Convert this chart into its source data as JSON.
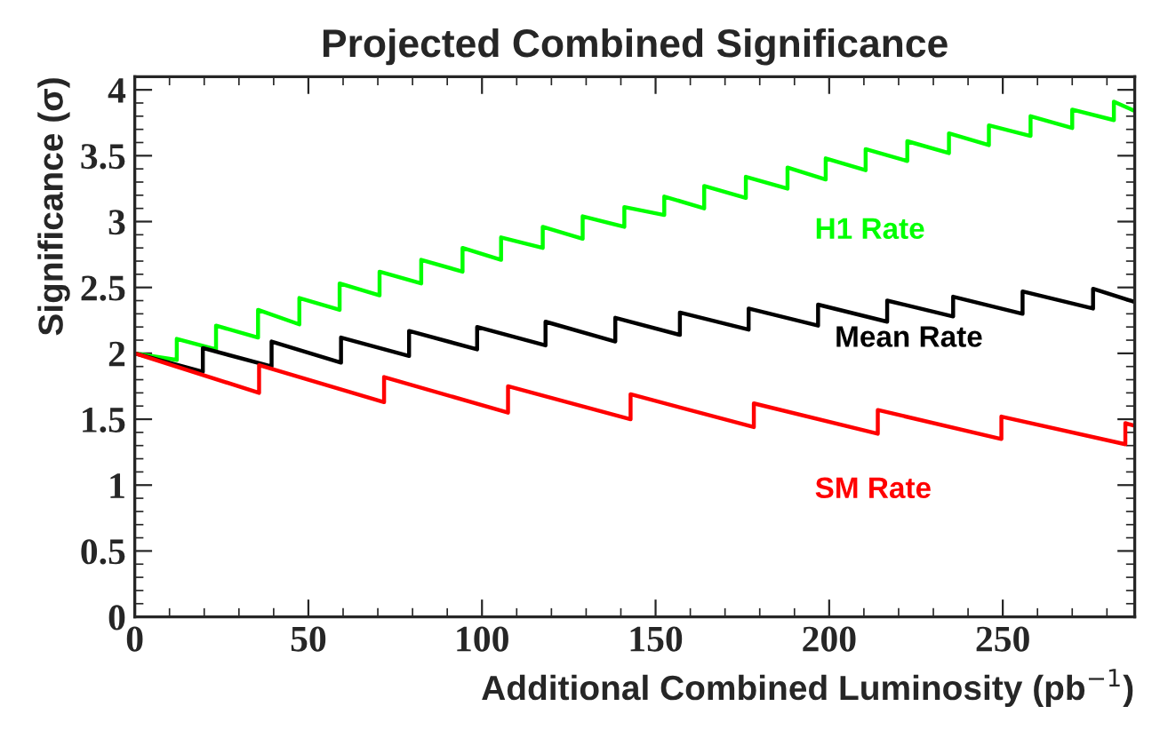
{
  "chart_data": {
    "type": "line",
    "title": "Projected Combined Significance",
    "xlabel": "Additional Combined Luminosity (pb$^{−1}$)",
    "ylabel": "Significance (σ)",
    "xlim": [
      0,
      288
    ],
    "ylim": [
      0,
      4.1
    ],
    "xticks": [
      0,
      50,
      100,
      150,
      200,
      250
    ],
    "yticks": [
      0,
      0.5,
      1,
      1.5,
      2,
      2.5,
      3,
      3.5,
      4
    ],
    "grid": false,
    "legend": false,
    "marker": "none",
    "line_style": "solid",
    "series": [
      {
        "name": "H1 Rate",
        "color": "#00ff00",
        "x": [
          0,
          12.1,
          12.1,
          23.4,
          23.4,
          35.5,
          35.5,
          47.4,
          47.4,
          59,
          59,
          70.5,
          70.5,
          82.5,
          82.5,
          94.4,
          94.4,
          105.5,
          105.5,
          117.5,
          117.5,
          129,
          129,
          141,
          141,
          152.5,
          152.5,
          164,
          164,
          176,
          176,
          188,
          188,
          199,
          199,
          210.5,
          210.5,
          222.5,
          222.5,
          234.5,
          234.5,
          246,
          246,
          258,
          258,
          270,
          270,
          282,
          282,
          288
        ],
        "values": [
          2,
          1.95,
          2.11,
          2.03,
          2.21,
          2.12,
          2.33,
          2.22,
          2.42,
          2.33,
          2.53,
          2.44,
          2.62,
          2.53,
          2.71,
          2.62,
          2.8,
          2.71,
          2.88,
          2.8,
          2.96,
          2.87,
          3.04,
          2.96,
          3.11,
          3.05,
          3.19,
          3.1,
          3.27,
          3.18,
          3.34,
          3.25,
          3.41,
          3.32,
          3.48,
          3.39,
          3.55,
          3.46,
          3.61,
          3.52,
          3.67,
          3.58,
          3.73,
          3.65,
          3.8,
          3.71,
          3.85,
          3.77,
          3.91,
          3.84
        ]
      },
      {
        "name": "Mean Rate",
        "color": "#000000",
        "x": [
          0,
          19.6,
          19.6,
          39.4,
          39.4,
          59.4,
          59.4,
          79,
          79,
          98.6,
          98.6,
          118.3,
          118.3,
          138.4,
          138.4,
          157,
          157,
          176.8,
          176.8,
          196.8,
          196.8,
          216.7,
          216.7,
          235.7,
          235.7,
          255.7,
          255.7,
          276,
          276,
          288
        ],
        "values": [
          2,
          1.86,
          2.04,
          1.9,
          2.09,
          1.93,
          2.12,
          1.98,
          2.17,
          2.03,
          2.2,
          2.06,
          2.24,
          2.09,
          2.27,
          2.14,
          2.31,
          2.18,
          2.34,
          2.21,
          2.37,
          2.24,
          2.4,
          2.28,
          2.43,
          2.3,
          2.47,
          2.34,
          2.49,
          2.39
        ]
      },
      {
        "name": "SM Rate",
        "color": "#ff0000",
        "x": [
          0,
          35.8,
          35.8,
          71.8,
          71.8,
          107.5,
          107.5,
          142.8,
          142.8,
          178.3,
          178.3,
          214,
          214,
          249.6,
          249.6,
          285.3,
          285.3,
          288
        ],
        "values": [
          2,
          1.7,
          1.91,
          1.63,
          1.82,
          1.55,
          1.75,
          1.5,
          1.69,
          1.44,
          1.62,
          1.39,
          1.57,
          1.35,
          1.52,
          1.31,
          1.47,
          1.45
        ]
      }
    ]
  }
}
